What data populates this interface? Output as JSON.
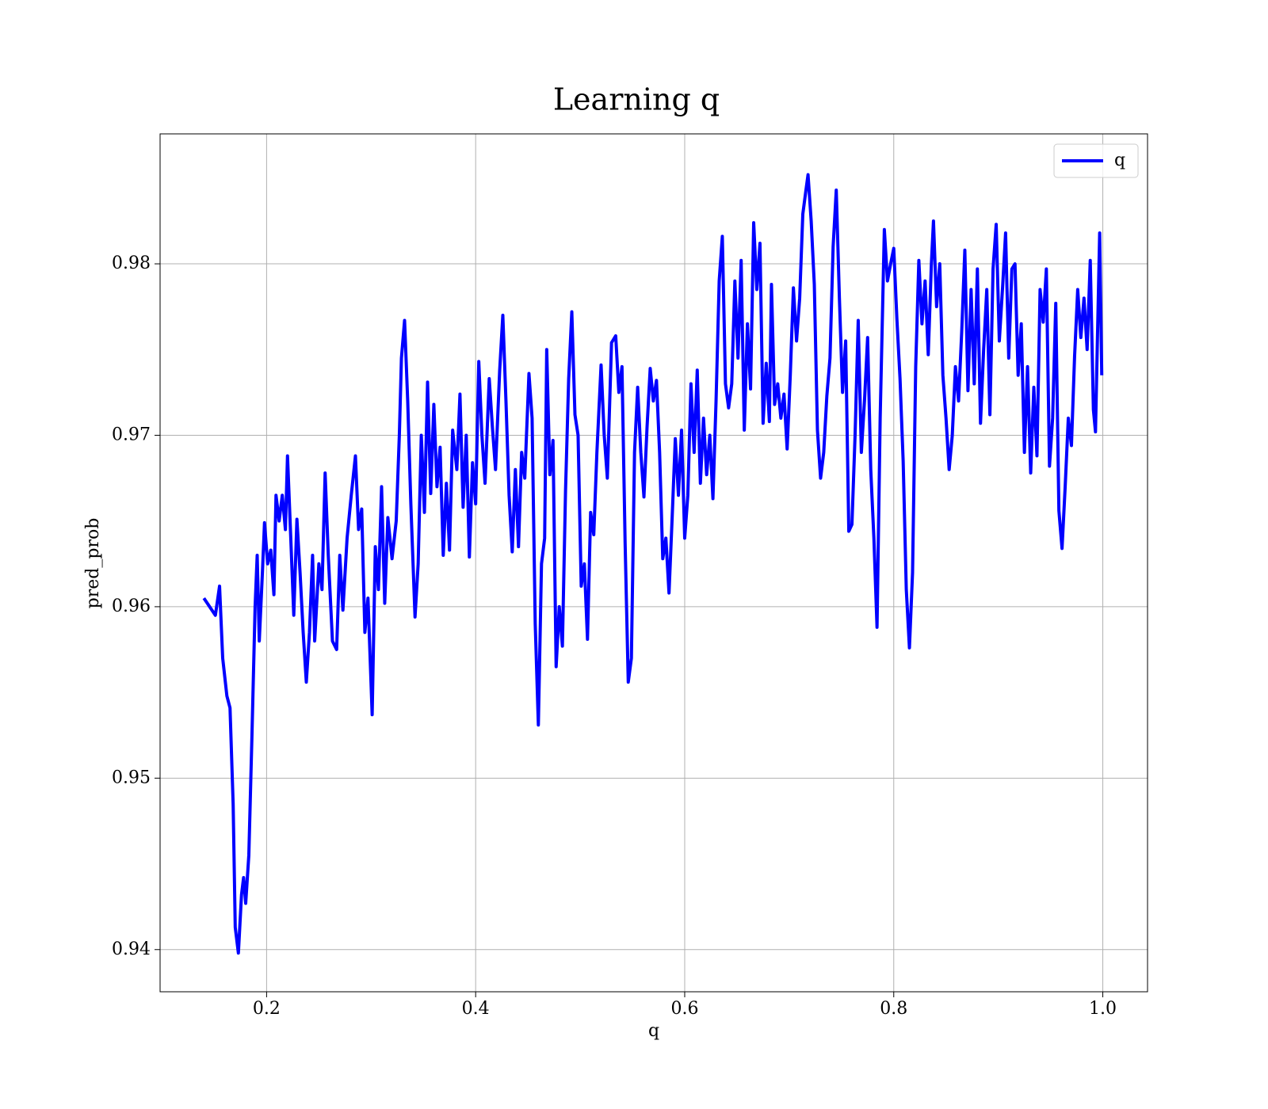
{
  "chart_data": {
    "type": "line",
    "title": "Learning q",
    "x_label": "q",
    "y_label": "pred_prob",
    "xlim": [
      0.0981,
      1.0428
    ],
    "ylim": [
      0.93754,
      0.98758
    ],
    "xticks": [
      0.2,
      0.4,
      0.6,
      0.8,
      {
        "value": 1.0,
        "label": "1.0"
      }
    ],
    "yticks": [
      0.94,
      0.95,
      0.96,
      0.97,
      0.98
    ],
    "grid": true,
    "legend": "upper right",
    "x": [
      0.14,
      0.151,
      0.155,
      0.158,
      0.162,
      0.165,
      0.168,
      0.17,
      0.173,
      0.176,
      0.178,
      0.18,
      0.183,
      0.186,
      0.189,
      0.191,
      0.193,
      0.196,
      0.198,
      0.201,
      0.204,
      0.207,
      0.209,
      0.212,
      0.215,
      0.218,
      0.22,
      0.223,
      0.226,
      0.229,
      0.232,
      0.235,
      0.238,
      0.241,
      0.244,
      0.246,
      0.25,
      0.253,
      0.256,
      0.259,
      0.263,
      0.267,
      0.27,
      0.273,
      0.277,
      0.281,
      0.285,
      0.288,
      0.291,
      0.294,
      0.297,
      0.301,
      0.304,
      0.307,
      0.31,
      0.313,
      0.316,
      0.32,
      0.324,
      0.327,
      0.329,
      0.332,
      0.335,
      0.338,
      0.342,
      0.345,
      0.348,
      0.351,
      0.354,
      0.357,
      0.36,
      0.363,
      0.366,
      0.369,
      0.372,
      0.375,
      0.378,
      0.382,
      0.385,
      0.388,
      0.391,
      0.394,
      0.397,
      0.4,
      0.403,
      0.406,
      0.409,
      0.413,
      0.416,
      0.419,
      0.423,
      0.426,
      0.429,
      0.432,
      0.435,
      0.438,
      0.441,
      0.444,
      0.447,
      0.451,
      0.454,
      0.457,
      0.46,
      0.463,
      0.466,
      0.468,
      0.471,
      0.474,
      0.477,
      0.48,
      0.483,
      0.486,
      0.489,
      0.492,
      0.495,
      0.498,
      0.501,
      0.504,
      0.507,
      0.51,
      0.513,
      0.516,
      0.52,
      0.523,
      0.526,
      0.53,
      0.534,
      0.537,
      0.54,
      0.543,
      0.546,
      0.549,
      0.552,
      0.555,
      0.558,
      0.561,
      0.564,
      0.567,
      0.57,
      0.573,
      0.576,
      0.579,
      0.582,
      0.585,
      0.588,
      0.591,
      0.594,
      0.597,
      0.6,
      0.603,
      0.606,
      0.609,
      0.612,
      0.615,
      0.618,
      0.621,
      0.624,
      0.627,
      0.63,
      0.633,
      0.636,
      0.639,
      0.642,
      0.645,
      0.648,
      0.651,
      0.654,
      0.657,
      0.66,
      0.663,
      0.666,
      0.669,
      0.672,
      0.675,
      0.678,
      0.681,
      0.683,
      0.686,
      0.689,
      0.692,
      0.695,
      0.698,
      0.701,
      0.704,
      0.707,
      0.71,
      0.713,
      0.716,
      0.718,
      0.721,
      0.724,
      0.727,
      0.73,
      0.733,
      0.736,
      0.739,
      0.742,
      0.745,
      0.748,
      0.751,
      0.754,
      0.757,
      0.76,
      0.763,
      0.766,
      0.769,
      0.772,
      0.775,
      0.778,
      0.781,
      0.784,
      0.787,
      0.791,
      0.794,
      0.797,
      0.8,
      0.803,
      0.806,
      0.809,
      0.812,
      0.815,
      0.818,
      0.821,
      0.824,
      0.827,
      0.83,
      0.833,
      0.836,
      0.838,
      0.841,
      0.844,
      0.847,
      0.85,
      0.853,
      0.856,
      0.859,
      0.862,
      0.865,
      0.868,
      0.871,
      0.874,
      0.877,
      0.88,
      0.883,
      0.886,
      0.889,
      0.892,
      0.895,
      0.898,
      0.901,
      0.904,
      0.907,
      0.91,
      0.913,
      0.916,
      0.919,
      0.922,
      0.925,
      0.928,
      0.931,
      0.934,
      0.937,
      0.94,
      0.943,
      0.946,
      0.949,
      0.952,
      0.955,
      0.958,
      0.961,
      0.964,
      0.967,
      0.97,
      0.973,
      0.976,
      0.979,
      0.982,
      0.985,
      0.988,
      0.991,
      0.993,
      0.995,
      0.997,
      0.999
    ],
    "series": [
      {
        "name": "q",
        "color": "#0000ff",
        "values": [
          0.9605,
          0.9595,
          0.9612,
          0.957,
          0.9548,
          0.9541,
          0.9485,
          0.9413,
          0.9398,
          0.9432,
          0.9442,
          0.9427,
          0.9455,
          0.9525,
          0.96,
          0.963,
          0.958,
          0.962,
          0.9649,
          0.9625,
          0.9633,
          0.9607,
          0.9665,
          0.965,
          0.9665,
          0.9645,
          0.9688,
          0.9642,
          0.9595,
          0.9651,
          0.962,
          0.9585,
          0.9556,
          0.9585,
          0.963,
          0.958,
          0.9625,
          0.961,
          0.9678,
          0.963,
          0.958,
          0.9575,
          0.963,
          0.9598,
          0.964,
          0.9665,
          0.9688,
          0.9645,
          0.9657,
          0.9585,
          0.9605,
          0.9537,
          0.9635,
          0.961,
          0.967,
          0.9602,
          0.9652,
          0.9628,
          0.965,
          0.97,
          0.9745,
          0.9767,
          0.972,
          0.966,
          0.9594,
          0.9625,
          0.97,
          0.9655,
          0.9731,
          0.9666,
          0.9718,
          0.967,
          0.9693,
          0.963,
          0.9672,
          0.9633,
          0.9703,
          0.968,
          0.9724,
          0.9658,
          0.97,
          0.9629,
          0.9684,
          0.966,
          0.9743,
          0.97,
          0.9672,
          0.9733,
          0.9705,
          0.968,
          0.9738,
          0.977,
          0.972,
          0.9665,
          0.9632,
          0.968,
          0.9635,
          0.969,
          0.9675,
          0.9736,
          0.971,
          0.959,
          0.9531,
          0.9625,
          0.964,
          0.975,
          0.9677,
          0.9697,
          0.9565,
          0.96,
          0.9577,
          0.9668,
          0.9733,
          0.9772,
          0.9712,
          0.97,
          0.9612,
          0.9625,
          0.9581,
          0.9655,
          0.9642,
          0.969,
          0.9741,
          0.97,
          0.9675,
          0.9754,
          0.9758,
          0.9725,
          0.974,
          0.9637,
          0.9556,
          0.957,
          0.969,
          0.9728,
          0.969,
          0.9664,
          0.9705,
          0.9739,
          0.972,
          0.9732,
          0.969,
          0.9628,
          0.964,
          0.9608,
          0.9652,
          0.9698,
          0.9665,
          0.9703,
          0.964,
          0.9665,
          0.973,
          0.969,
          0.9738,
          0.9672,
          0.971,
          0.9677,
          0.97,
          0.9663,
          0.972,
          0.979,
          0.9816,
          0.973,
          0.9716,
          0.973,
          0.979,
          0.9745,
          0.9802,
          0.9703,
          0.9765,
          0.9727,
          0.9824,
          0.9785,
          0.9812,
          0.9707,
          0.9742,
          0.9708,
          0.9788,
          0.9718,
          0.973,
          0.971,
          0.9724,
          0.9692,
          0.9735,
          0.9786,
          0.9755,
          0.978,
          0.9829,
          0.9843,
          0.9852,
          0.9825,
          0.9788,
          0.9703,
          0.9675,
          0.969,
          0.9723,
          0.9745,
          0.981,
          0.9843,
          0.978,
          0.9725,
          0.9755,
          0.9644,
          0.9648,
          0.97,
          0.9767,
          0.969,
          0.972,
          0.9757,
          0.968,
          0.964,
          0.9588,
          0.971,
          0.982,
          0.979,
          0.98,
          0.9809,
          0.9768,
          0.9733,
          0.9685,
          0.961,
          0.9576,
          0.962,
          0.974,
          0.9802,
          0.9765,
          0.979,
          0.9747,
          0.98,
          0.9825,
          0.9775,
          0.98,
          0.9735,
          0.971,
          0.968,
          0.97,
          0.974,
          0.972,
          0.976,
          0.9808,
          0.9726,
          0.9785,
          0.973,
          0.9797,
          0.9707,
          0.975,
          0.9785,
          0.9712,
          0.9797,
          0.9823,
          0.9755,
          0.9785,
          0.9818,
          0.9745,
          0.9797,
          0.98,
          0.9735,
          0.9765,
          0.969,
          0.974,
          0.9678,
          0.9728,
          0.9688,
          0.9785,
          0.9766,
          0.9797,
          0.9682,
          0.971,
          0.9777,
          0.9656,
          0.9634,
          0.967,
          0.971,
          0.9694,
          0.9746,
          0.9785,
          0.9757,
          0.978,
          0.975,
          0.9802,
          0.9715,
          0.9702,
          0.976,
          0.9818,
          0.9735
        ]
      }
    ]
  }
}
